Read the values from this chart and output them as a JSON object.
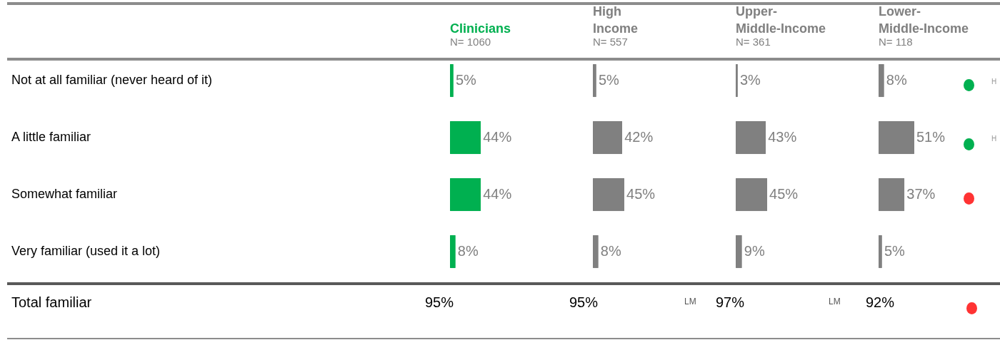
{
  "chart_data": [
    {
      "type": "bar",
      "orientation": "horizontal",
      "title": "Clinicians",
      "subtitle": "N= 1060",
      "categories": [
        "Not at all familiar (never heard of it)",
        "A little familiar",
        "Somewhat familiar",
        "Very familiar (used it a lot)"
      ],
      "values": [
        5,
        44,
        44,
        8
      ],
      "value_labels": [
        "5%",
        "44%",
        "44%",
        "8%"
      ],
      "color": "#00b050",
      "tick_labels": "y",
      "annotations": [
        "Total familiar",
        "95%"
      ]
    },
    {
      "type": "bar",
      "orientation": "horizontal",
      "title": "High Income",
      "subtitle": "N= 557",
      "categories": [
        null,
        null,
        null,
        null
      ],
      "values": [
        5,
        42,
        45,
        8
      ],
      "value_labels": [
        "5%",
        "42%",
        "45%",
        "8%"
      ],
      "color": "#808080",
      "tick_labels": false,
      "annotations": [
        "95%",
        "LM"
      ]
    },
    {
      "type": "bar",
      "orientation": "horizontal",
      "title": "Upper-Middle-Income",
      "subtitle": "N= 361",
      "categories": [
        null,
        null,
        null,
        null
      ],
      "values": [
        3,
        43,
        45,
        9
      ],
      "value_labels": [
        "3%",
        "43%",
        "45%",
        "9%"
      ],
      "color": "#808080",
      "tick_labels": false,
      "annotations": [
        "97%",
        "LM"
      ]
    },
    {
      "type": "bar",
      "orientation": "horizontal",
      "title": "Lower-Middle-Income",
      "subtitle": "N= 118",
      "categories": [
        null,
        null,
        null,
        null
      ],
      "values": [
        8,
        51,
        37,
        5
      ],
      "value_labels": [
        "8%",
        "51%",
        "37%",
        "5%"
      ],
      "color": "#808080",
      "tick_labels": false,
      "annotations": [
        "92%",
        "H",
        "H"
      ]
    }
  ]
}
